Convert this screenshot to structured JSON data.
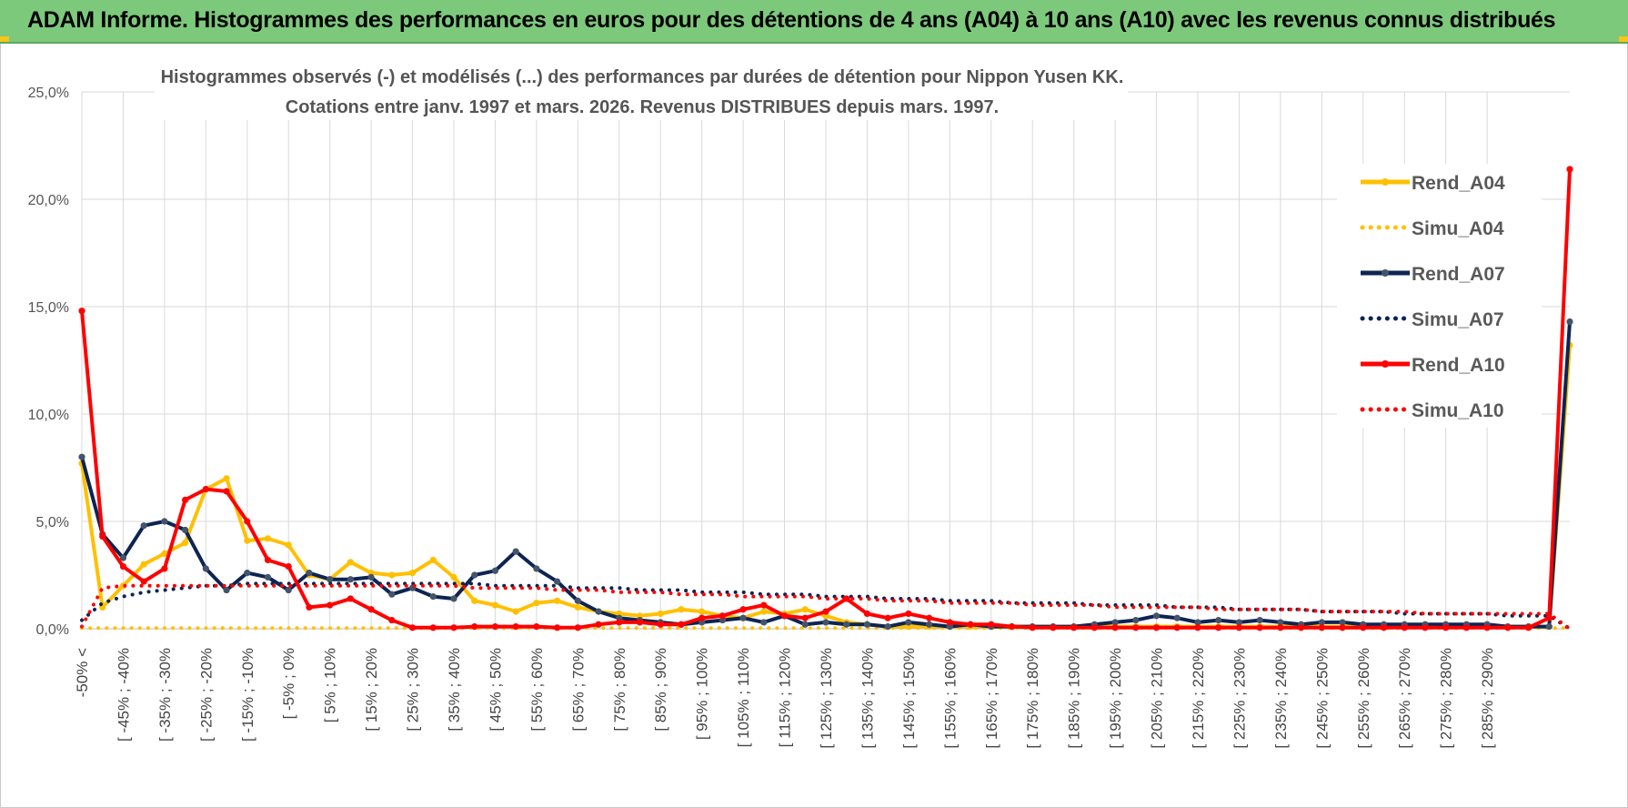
{
  "header": {
    "title": "ADAM Informe. Histogrammes des performances en euros pour des détentions de 4 ans (A04) à 10 ans (A10) avec les revenus connus distribués",
    "bar_color": "#7dc97c"
  },
  "chart_data": {
    "type": "line",
    "title_lines": [
      "Histogrammes observés (-) et modélisés (...) des performances par durées de détention pour Nippon Yusen KK.",
      "Cotations entre janv. 1997 et mars. 2026. Revenus DISTRIBUES depuis mars. 1997."
    ],
    "ylim": [
      0,
      25
    ],
    "yticks": [
      0,
      5,
      10,
      15,
      20,
      25
    ],
    "ytick_labels": [
      "0,0%",
      "5,0%",
      "10,0%",
      "15,0%",
      "20,0%",
      "25,0%"
    ],
    "grid": true,
    "legend_position": "right",
    "x_labels_shown": [
      "-50% <",
      "[ -45% ; -40%",
      "[ -35% ; -30%",
      "[ -25% ; -20%",
      "[ -15% ; -10%",
      "[ -5% ; 0%",
      "[ 5% ; 10%",
      "[ 15% ; 20%",
      "[ 25% ; 30%",
      "[ 35% ; 40%",
      "[ 45% ; 50%",
      "[ 55% ; 60%",
      "[ 65% ; 70%",
      "[ 75% ; 80%",
      "[ 85% ; 90%",
      "[ 95% ; 100%",
      "[ 105% ; 110%",
      "[ 115% ; 120%",
      "[ 125% ; 130%",
      "[ 135% ; 140%",
      "[ 145% ; 150%",
      "[ 155% ; 160%",
      "[ 165% ; 170%",
      "[ 175% ; 180%",
      "[ 185% ; 190%",
      "[ 195% ; 200%",
      "[ 205% ; 210%",
      "[ 215% ; 220%",
      "[ 225% ; 230%",
      "[ 235% ; 240%",
      "[ 245% ; 250%",
      "[ 255% ; 260%",
      "[ 265% ; 270%",
      "[ 275% ; 280%",
      "[ 285% ; 290%"
    ],
    "series": [
      {
        "name": "Rend_A04",
        "style": "solid",
        "color": "#ffc000",
        "values": [
          7.7,
          1.0,
          2.0,
          3.0,
          3.5,
          4.0,
          6.5,
          7.0,
          4.1,
          4.2,
          3.9,
          2.5,
          2.3,
          3.1,
          2.6,
          2.5,
          2.6,
          3.2,
          2.4,
          1.3,
          1.1,
          0.8,
          1.2,
          1.3,
          1.0,
          0.8,
          0.7,
          0.6,
          0.7,
          0.9,
          0.8,
          0.6,
          0.5,
          0.8,
          0.7,
          0.9,
          0.6,
          0.3,
          0.2,
          0.1,
          0.1,
          0.1,
          0.1,
          0.1,
          0.1,
          0.1,
          0.1,
          0.1,
          0.1,
          0.1,
          0.1,
          0.1,
          0.1,
          0.1,
          0.1,
          0.1,
          0.1,
          0.1,
          0.1,
          0.1,
          0.1,
          0.1,
          0.1,
          0.1,
          0.1,
          0.1,
          0.1,
          0.1,
          0.1,
          0.1,
          0.1,
          0.1,
          13.2
        ]
      },
      {
        "name": "Simu_A04",
        "style": "dotted",
        "color": "#ffc000",
        "values": [
          0.03,
          0.03,
          0.03,
          0.03,
          0.03,
          0.03,
          0.03,
          0.03,
          0.03,
          0.03,
          0.03,
          0.03,
          0.03,
          0.03,
          0.03,
          0.03,
          0.03,
          0.03,
          0.03,
          0.03,
          0.03,
          0.03,
          0.03,
          0.03,
          0.03,
          0.03,
          0.03,
          0.03,
          0.03,
          0.03,
          0.03,
          0.03,
          0.03,
          0.03,
          0.03,
          0.03,
          0.03,
          0.03,
          0.03,
          0.03,
          0.03,
          0.03,
          0.03,
          0.03,
          0.03,
          0.03,
          0.03,
          0.03,
          0.03,
          0.03,
          0.03,
          0.03,
          0.03,
          0.03,
          0.03,
          0.03,
          0.03,
          0.03,
          0.03,
          0.03,
          0.03,
          0.03,
          0.03,
          0.03,
          0.03,
          0.03,
          0.03,
          0.03,
          0.03,
          0.03,
          0.03,
          0.03,
          0.03
        ]
      },
      {
        "name": "Rend_A07",
        "style": "solid",
        "color": "#0d2453",
        "values": [
          8.0,
          4.4,
          3.3,
          4.8,
          5.0,
          4.6,
          2.8,
          1.8,
          2.6,
          2.4,
          1.8,
          2.6,
          2.3,
          2.3,
          2.4,
          1.6,
          1.9,
          1.5,
          1.4,
          2.5,
          2.7,
          3.6,
          2.8,
          2.2,
          1.3,
          0.8,
          0.5,
          0.4,
          0.3,
          0.2,
          0.3,
          0.4,
          0.5,
          0.3,
          0.6,
          0.2,
          0.3,
          0.2,
          0.2,
          0.1,
          0.3,
          0.2,
          0.1,
          0.2,
          0.1,
          0.1,
          0.1,
          0.1,
          0.1,
          0.2,
          0.3,
          0.4,
          0.6,
          0.5,
          0.3,
          0.4,
          0.3,
          0.4,
          0.3,
          0.2,
          0.3,
          0.3,
          0.2,
          0.2,
          0.2,
          0.2,
          0.2,
          0.2,
          0.2,
          0.1,
          0.1,
          0.1,
          14.3
        ]
      },
      {
        "name": "Simu_A07",
        "style": "dotted",
        "color": "#0d2453",
        "values": [
          0.4,
          1.2,
          1.5,
          1.7,
          1.8,
          1.9,
          2.0,
          2.0,
          2.1,
          2.1,
          2.1,
          2.1,
          2.1,
          2.1,
          2.1,
          2.1,
          2.1,
          2.1,
          2.1,
          2.1,
          2.0,
          2.0,
          2.0,
          2.0,
          1.9,
          1.9,
          1.9,
          1.8,
          1.8,
          1.8,
          1.7,
          1.7,
          1.7,
          1.6,
          1.6,
          1.6,
          1.5,
          1.5,
          1.5,
          1.4,
          1.4,
          1.4,
          1.3,
          1.3,
          1.3,
          1.2,
          1.2,
          1.2,
          1.2,
          1.1,
          1.1,
          1.1,
          1.1,
          1.0,
          1.0,
          1.0,
          0.9,
          0.9,
          0.9,
          0.9,
          0.8,
          0.8,
          0.8,
          0.8,
          0.7,
          0.7,
          0.7,
          0.7,
          0.7,
          0.6,
          0.6,
          0.6,
          0.0
        ]
      },
      {
        "name": "Rend_A10",
        "style": "solid",
        "color": "#ff0000",
        "values": [
          14.8,
          4.3,
          2.9,
          2.2,
          2.8,
          6.0,
          6.5,
          6.4,
          5.0,
          3.2,
          2.9,
          1.0,
          1.1,
          1.4,
          0.9,
          0.4,
          0.05,
          0.05,
          0.05,
          0.1,
          0.1,
          0.1,
          0.1,
          0.05,
          0.05,
          0.2,
          0.3,
          0.3,
          0.2,
          0.2,
          0.5,
          0.6,
          0.9,
          1.1,
          0.6,
          0.5,
          0.8,
          1.4,
          0.7,
          0.5,
          0.7,
          0.5,
          0.3,
          0.2,
          0.2,
          0.1,
          0.05,
          0.05,
          0.05,
          0.05,
          0.05,
          0.05,
          0.05,
          0.05,
          0.05,
          0.05,
          0.05,
          0.05,
          0.05,
          0.05,
          0.05,
          0.05,
          0.05,
          0.05,
          0.05,
          0.05,
          0.05,
          0.05,
          0.05,
          0.05,
          0.05,
          0.5,
          21.4
        ]
      },
      {
        "name": "Simu_A10",
        "style": "dotted",
        "color": "#ff0000",
        "values": [
          0.1,
          1.9,
          2.0,
          2.0,
          2.0,
          2.0,
          2.0,
          2.0,
          2.0,
          2.0,
          2.0,
          2.0,
          2.0,
          2.0,
          2.0,
          2.0,
          2.0,
          2.0,
          2.0,
          1.9,
          1.9,
          1.9,
          1.9,
          1.8,
          1.8,
          1.8,
          1.7,
          1.7,
          1.7,
          1.6,
          1.6,
          1.6,
          1.5,
          1.5,
          1.5,
          1.5,
          1.4,
          1.4,
          1.4,
          1.3,
          1.3,
          1.3,
          1.2,
          1.2,
          1.2,
          1.2,
          1.1,
          1.1,
          1.1,
          1.1,
          1.0,
          1.0,
          1.0,
          1.0,
          1.0,
          0.9,
          0.9,
          0.9,
          0.9,
          0.9,
          0.8,
          0.8,
          0.8,
          0.8,
          0.8,
          0.7,
          0.7,
          0.7,
          0.7,
          0.7,
          0.7,
          0.7,
          0.0
        ]
      }
    ]
  }
}
